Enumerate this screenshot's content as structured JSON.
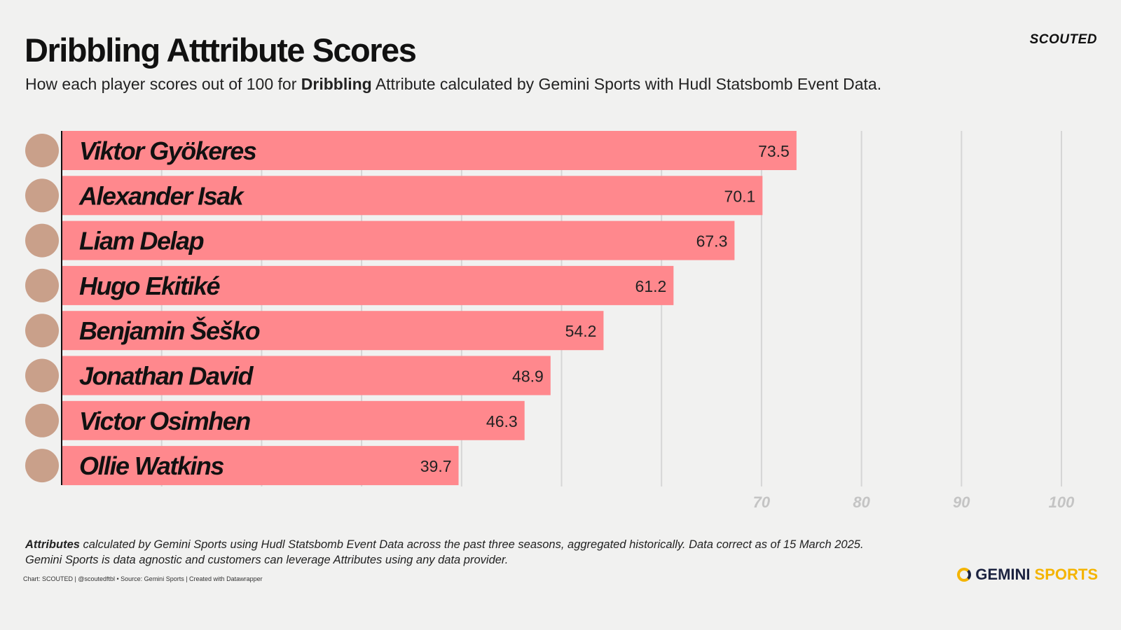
{
  "header": {
    "title": "Dribbling Atttribute Scores",
    "subtitle_pre": "How each player scores out of 100 for ",
    "subtitle_bold": "Dribbling",
    "subtitle_post": " Attribute calculated by Gemini Sports with Hudl Statsbomb Event Data.",
    "brand": "SCOUTED"
  },
  "chart_data": {
    "type": "bar",
    "orientation": "horizontal",
    "categories": [
      "Viktor  Gyökeres",
      "Alexander Isak",
      "Liam Delap",
      "Hugo Ekitiké",
      "Benjamin Šeško",
      "Jonathan David",
      "Victor Osimhen",
      "Ollie Watkins"
    ],
    "values": [
      73.5,
      70.1,
      67.3,
      61.2,
      54.2,
      48.9,
      46.3,
      39.7
    ],
    "xlim": [
      0,
      100
    ],
    "gridlines": [
      10,
      20,
      30,
      40,
      50,
      60,
      70,
      80,
      90,
      100
    ],
    "tick_labels": [
      "70",
      "80",
      "90",
      "100"
    ],
    "grid": true,
    "bar_color": "#ff888d"
  },
  "footer": {
    "note_bold": "Attributes",
    "note_line1": " calculated by Gemini Sports using Hudl Statsbomb Event Data across the past three seasons, aggregated historically. Data correct as of 15 March 2025.",
    "note_line2": "Gemini Sports is data agnostic and customers can leverage Attributes using any data provider.",
    "credit": "Chart: SCOUTED | @scoutedftbl • Source: Gemini Sports | Created with Datawrapper",
    "logo_a": "GEMINI",
    "logo_b": "SPORTS"
  }
}
